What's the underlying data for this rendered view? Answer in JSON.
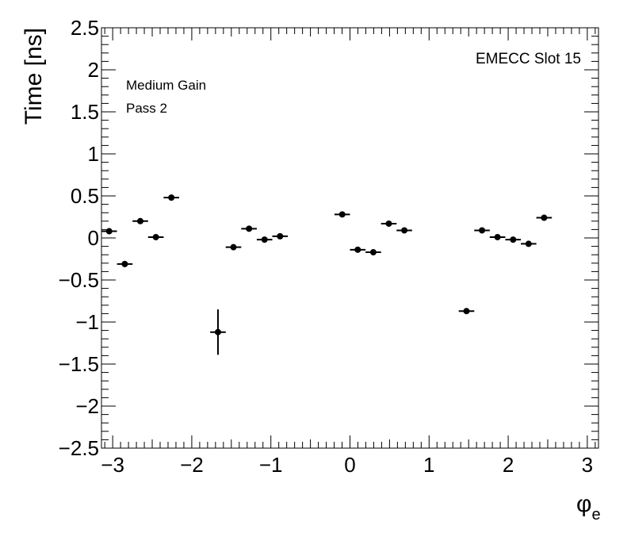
{
  "chart_data": {
    "type": "scatter",
    "title": "",
    "xlabel": "φ",
    "xlabel_sub": "e",
    "ylabel": "Time [ns]",
    "xlim": [
      -3.1416,
      3.1416
    ],
    "ylim": [
      -2.5,
      2.5
    ],
    "x_ticks": [
      -3,
      -2,
      -1,
      0,
      1,
      2,
      3
    ],
    "x_tick_labels": [
      "−3",
      "−2",
      "−1",
      "0",
      "1",
      "2",
      "3"
    ],
    "y_ticks": [
      -2.5,
      -2,
      -1.5,
      -1,
      -0.5,
      0,
      0.5,
      1,
      1.5,
      2,
      2.5
    ],
    "y_tick_labels": [
      "−2.5",
      "−2",
      "−1.5",
      "−1",
      "−0.5",
      "0",
      "0.5",
      "1",
      "1.5",
      "2",
      "2.5"
    ],
    "grid": false,
    "annotations": {
      "slot": "EMECC Slot 15",
      "gain": "Medium Gain",
      "pass": "Pass 2"
    },
    "points": [
      {
        "x": -3.044,
        "y": 0.08,
        "yerr": 0.015
      },
      {
        "x": -2.847,
        "y": -0.31,
        "yerr": 0.015
      },
      {
        "x": -2.651,
        "y": 0.2,
        "yerr": 0.015
      },
      {
        "x": -2.454,
        "y": 0.01,
        "yerr": 0.015
      },
      {
        "x": -2.258,
        "y": 0.48,
        "yerr": 0.015
      },
      {
        "x": -1.669,
        "y": -1.12,
        "yerr": 0.27
      },
      {
        "x": -1.473,
        "y": -0.11,
        "yerr": 0.015
      },
      {
        "x": -1.276,
        "y": 0.11,
        "yerr": 0.015
      },
      {
        "x": -1.08,
        "y": -0.02,
        "yerr": 0.015
      },
      {
        "x": -0.884,
        "y": 0.02,
        "yerr": 0.015
      },
      {
        "x": -0.098,
        "y": 0.28,
        "yerr": 0.015
      },
      {
        "x": 0.098,
        "y": -0.14,
        "yerr": 0.015
      },
      {
        "x": 0.295,
        "y": -0.17,
        "yerr": 0.015
      },
      {
        "x": 0.491,
        "y": 0.17,
        "yerr": 0.015
      },
      {
        "x": 0.687,
        "y": 0.09,
        "yerr": 0.015
      },
      {
        "x": 1.473,
        "y": -0.87,
        "yerr": 0.015
      },
      {
        "x": 1.669,
        "y": 0.09,
        "yerr": 0.015
      },
      {
        "x": 1.865,
        "y": 0.01,
        "yerr": 0.015
      },
      {
        "x": 2.062,
        "y": -0.02,
        "yerr": 0.015
      },
      {
        "x": 2.258,
        "y": -0.07,
        "yerr": 0.015
      },
      {
        "x": 2.454,
        "y": 0.24,
        "yerr": 0.015
      }
    ],
    "xerr": 0.0982,
    "marker_color": "#000000"
  }
}
